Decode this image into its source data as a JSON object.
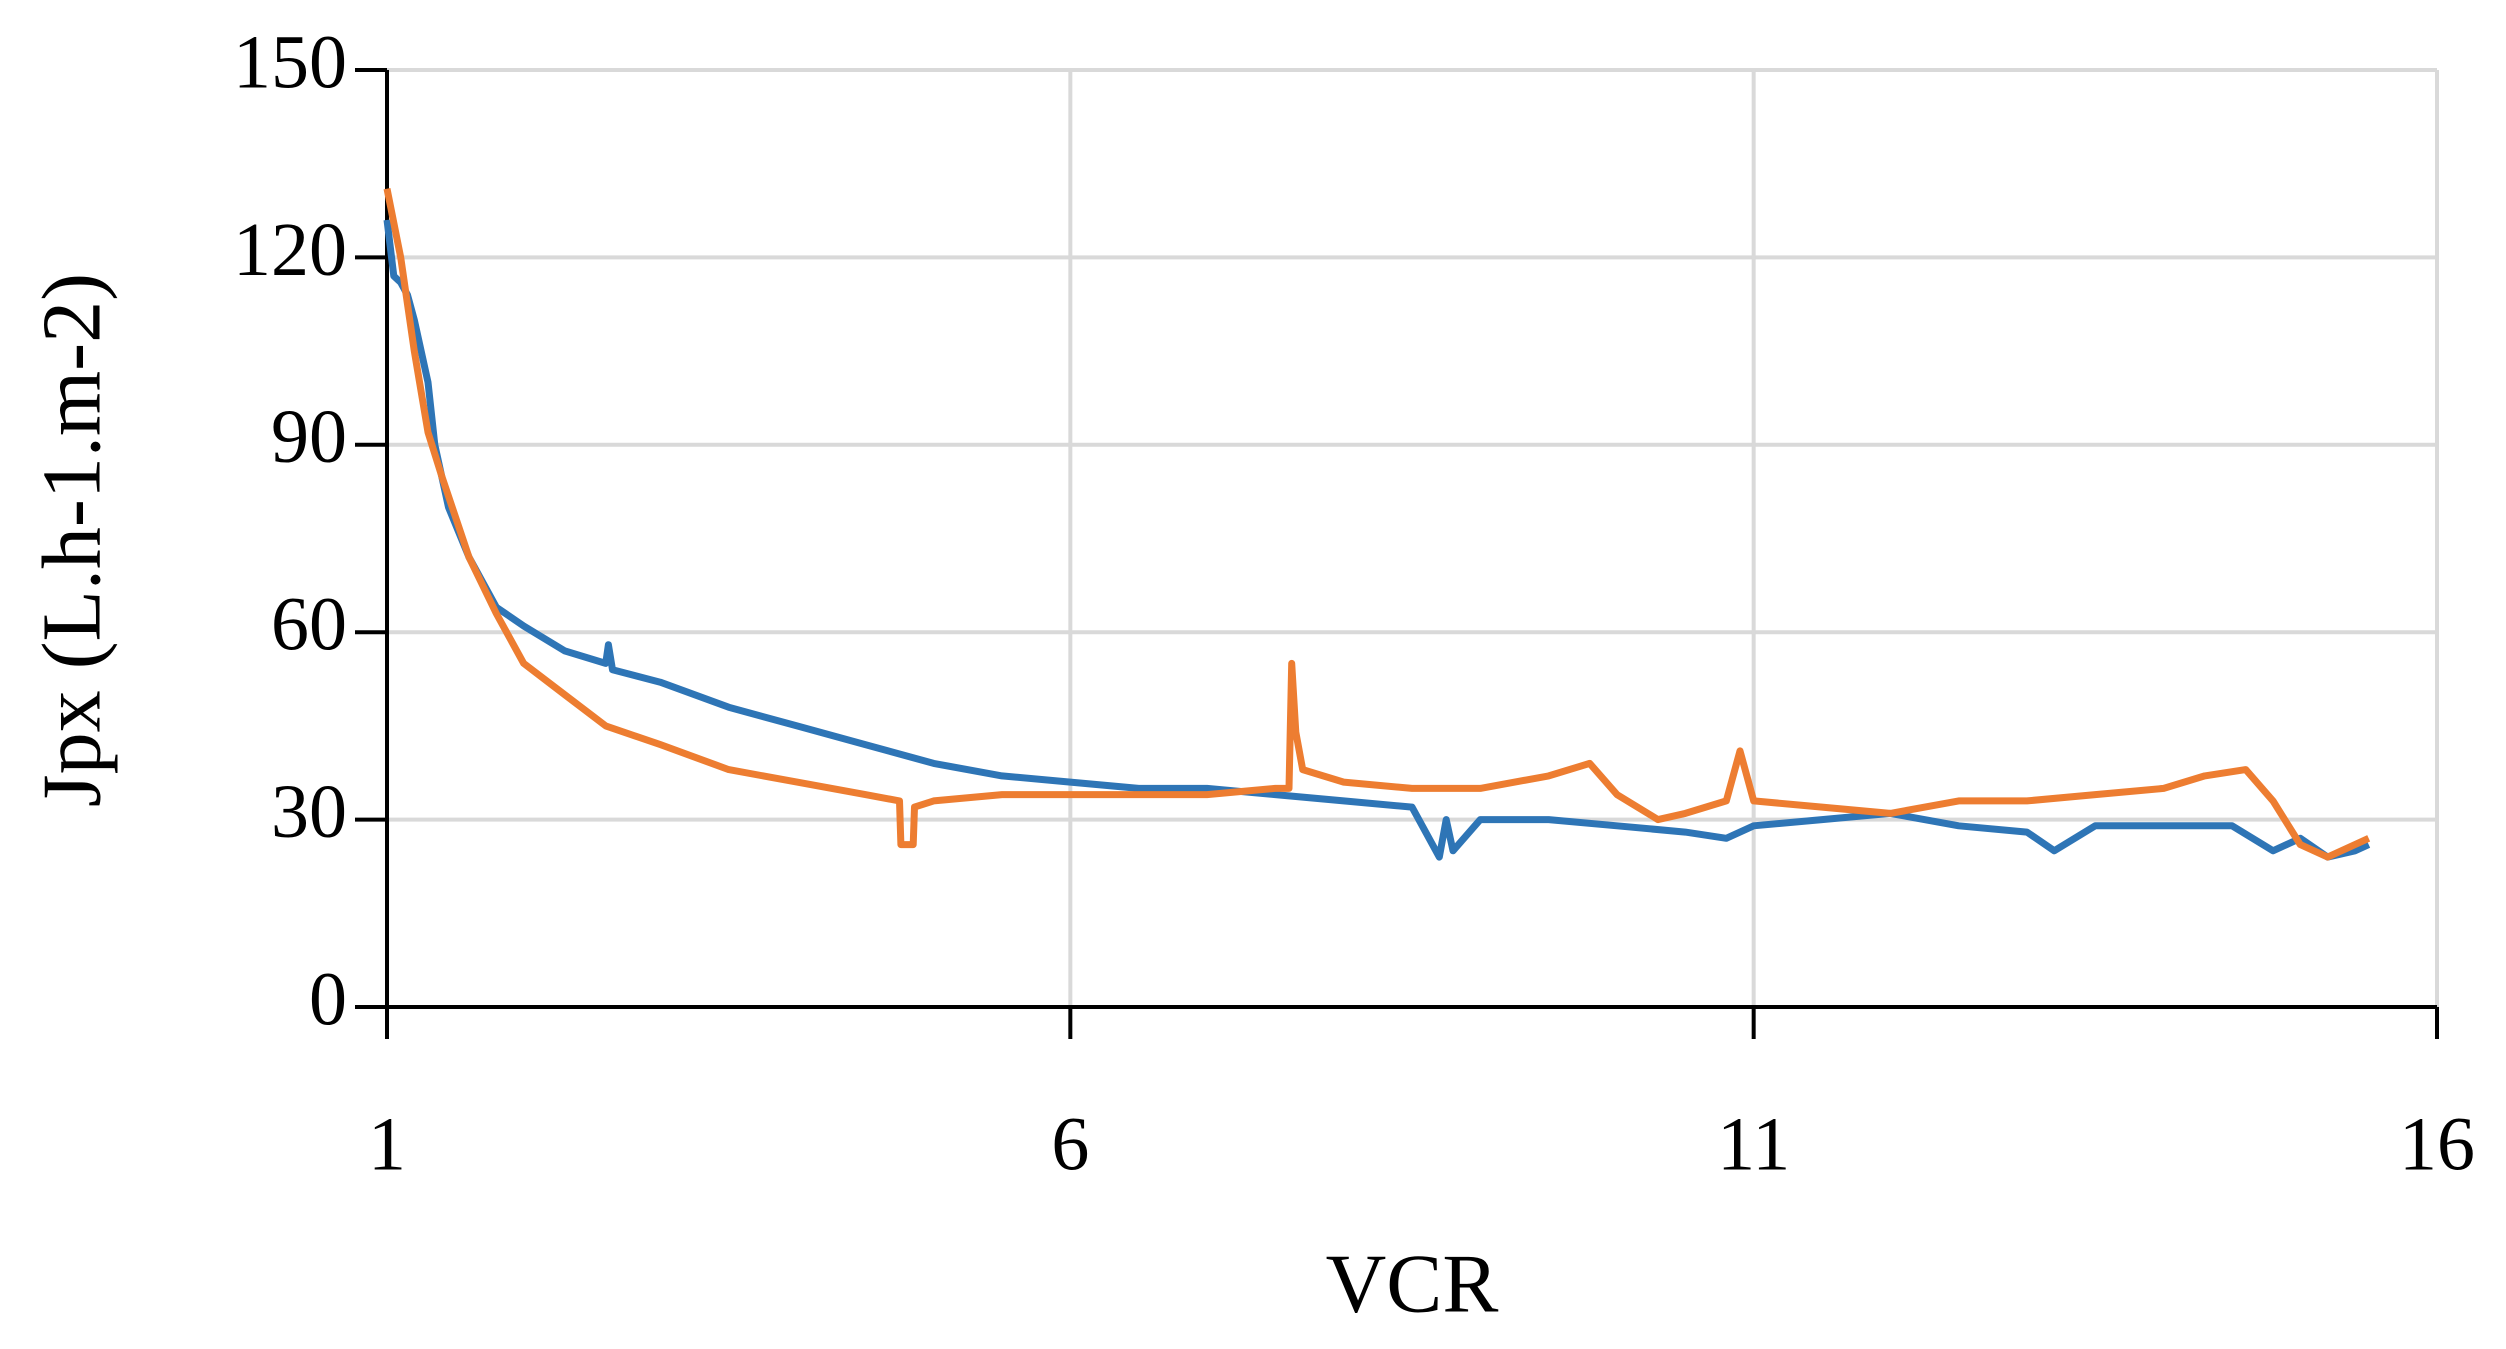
{
  "chart_data": {
    "type": "line",
    "x_label": "VCR",
    "y_label": "Jpx (L.h-1.m-2)",
    "xlim": [
      1,
      16
    ],
    "xticks": [
      1,
      6,
      11,
      16
    ],
    "ylim": [
      0,
      150
    ],
    "yticks": [
      0,
      30,
      60,
      90,
      120,
      150
    ],
    "grid": true,
    "series": [
      {
        "color": "#2e75b6",
        "x": [
          1,
          1.05,
          1.1,
          1.15,
          1.2,
          1.3,
          1.35,
          1.45,
          1.6,
          1.8,
          2.0,
          2.3,
          2.6,
          2.62,
          2.65,
          3.0,
          3.5,
          4.0,
          4.5,
          5.0,
          5.5,
          6.0,
          6.5,
          7.0,
          7.5,
          8.0,
          8.5,
          8.7,
          8.75,
          8.8,
          9.0,
          9.5,
          10.0,
          10.5,
          10.8,
          11.0,
          11.5,
          12.0,
          12.5,
          13.0,
          13.2,
          13.5,
          14.0,
          14.5,
          14.8,
          15.0,
          15.2,
          15.4,
          15.5
        ],
        "values": [
          126,
          117,
          116,
          114,
          110,
          100,
          90,
          80,
          72,
          64,
          61,
          57,
          55,
          58,
          54,
          52,
          48,
          45,
          42,
          39,
          37,
          36,
          35,
          35,
          34,
          33,
          32,
          24,
          30,
          25,
          30,
          30,
          29,
          28,
          27,
          29,
          30,
          31,
          29,
          28,
          25,
          29,
          29,
          29,
          25,
          27,
          24,
          25,
          26
        ]
      },
      {
        "color": "#ed7d31",
        "x": [
          1,
          1.1,
          1.2,
          1.3,
          1.4,
          1.6,
          1.8,
          2.0,
          2.3,
          2.6,
          3.0,
          3.5,
          4.0,
          4.5,
          4.75,
          4.76,
          4.85,
          4.86,
          5.0,
          5.5,
          6.0,
          6.5,
          7.0,
          7.5,
          7.6,
          7.62,
          7.65,
          7.7,
          8.0,
          8.5,
          9.0,
          9.5,
          9.8,
          10.0,
          10.3,
          10.5,
          10.8,
          10.9,
          11.0,
          11.5,
          12.0,
          12.5,
          13.0,
          13.5,
          14.0,
          14.3,
          14.6,
          14.8,
          15.0,
          15.2,
          15.5
        ],
        "values": [
          131,
          120,
          105,
          92,
          85,
          72,
          63,
          55,
          50,
          45,
          42,
          38,
          36,
          34,
          33,
          26,
          26,
          32,
          33,
          34,
          34,
          34,
          34,
          35,
          35,
          55,
          44,
          38,
          36,
          35,
          35,
          37,
          39,
          34,
          30,
          31,
          33,
          41,
          33,
          32,
          31,
          33,
          33,
          34,
          35,
          37,
          38,
          33,
          26,
          24,
          27
        ]
      }
    ]
  }
}
